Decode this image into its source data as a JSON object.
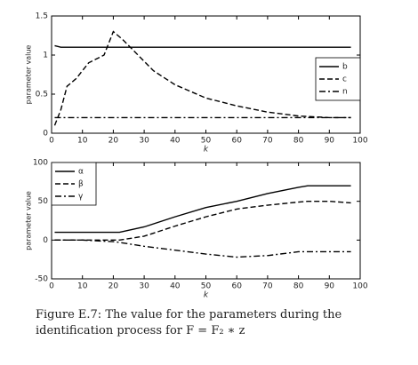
{
  "chart_data": [
    {
      "type": "line",
      "xlabel": "k",
      "ylabel": "parameter value",
      "x": [
        1,
        3,
        5,
        8,
        12,
        17,
        20,
        23,
        28,
        33,
        40,
        50,
        60,
        70,
        80,
        90,
        97
      ],
      "xlim": [
        0,
        100
      ],
      "xticks": [
        0,
        10,
        20,
        30,
        40,
        50,
        60,
        70,
        80,
        90,
        100
      ],
      "ylim": [
        0,
        1.5
      ],
      "yticks": [
        0,
        0.5,
        1,
        1.5
      ],
      "legend": "upper right",
      "grid": false,
      "series": [
        {
          "name": "b",
          "color": "#000000",
          "linestyle": "solid",
          "values": [
            1.12,
            1.1,
            1.1,
            1.1,
            1.1,
            1.1,
            1.1,
            1.1,
            1.1,
            1.1,
            1.1,
            1.1,
            1.1,
            1.1,
            1.1,
            1.1,
            1.1
          ]
        },
        {
          "name": "c",
          "color": "#000000",
          "linestyle": "dashed",
          "values": [
            0.1,
            0.3,
            0.6,
            0.7,
            0.9,
            1.0,
            1.3,
            1.2,
            1.0,
            0.8,
            0.62,
            0.45,
            0.35,
            0.27,
            0.22,
            0.2,
            0.2
          ]
        },
        {
          "name": "n",
          "color": "#000000",
          "linestyle": "dashdot",
          "values": [
            0.2,
            0.2,
            0.2,
            0.2,
            0.2,
            0.2,
            0.2,
            0.2,
            0.2,
            0.2,
            0.2,
            0.2,
            0.2,
            0.2,
            0.2,
            0.2,
            0.2
          ]
        }
      ]
    },
    {
      "type": "line",
      "xlabel": "k",
      "ylabel": "parameter value",
      "x": [
        1,
        10,
        20,
        22,
        30,
        40,
        50,
        60,
        70,
        80,
        83,
        90,
        97
      ],
      "xlim": [
        0,
        100
      ],
      "xticks": [
        0,
        10,
        20,
        30,
        40,
        50,
        60,
        70,
        80,
        90,
        100
      ],
      "ylim": [
        -50,
        100
      ],
      "yticks": [
        -50,
        0,
        50,
        100
      ],
      "legend": "upper left",
      "grid": false,
      "series": [
        {
          "name": "α",
          "color": "#000000",
          "linestyle": "solid",
          "values": [
            10,
            10,
            10,
            10,
            17,
            30,
            42,
            50,
            60,
            68,
            70,
            70,
            70
          ]
        },
        {
          "name": "β",
          "color": "#000000",
          "linestyle": "dashed",
          "values": [
            0,
            0,
            0,
            0,
            5,
            18,
            30,
            40,
            45,
            49,
            50,
            50,
            48
          ]
        },
        {
          "name": "γ",
          "color": "#000000",
          "linestyle": "dashdot",
          "values": [
            0,
            0,
            -2,
            -3,
            -8,
            -13,
            -18,
            -22,
            -20,
            -15,
            -15,
            -15,
            -15
          ]
        }
      ]
    }
  ],
  "caption": "Figure E.7:  The value for the parameters during the identification process for F = F₂ ∗ z"
}
